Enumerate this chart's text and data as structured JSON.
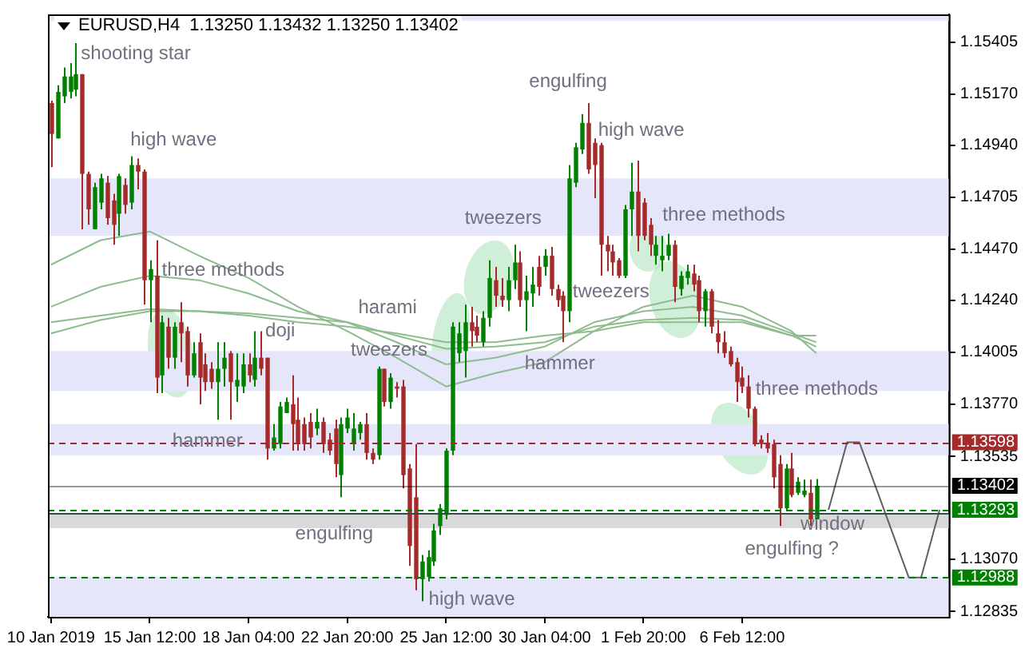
{
  "chart_data": {
    "type": "candlestick",
    "title": "EURUSD,H4  1.13250 1.13432 1.13250 1.13402",
    "categories": [
      "10 Jan 2019",
      null,
      null,
      null,
      null,
      null,
      null,
      null,
      null,
      null,
      null,
      null,
      null,
      null,
      null,
      null,
      "15 Jan 12:00",
      null,
      null,
      null,
      null,
      null,
      null,
      null,
      null,
      null,
      null,
      null,
      null,
      null,
      null,
      null,
      "18 Jan 04:00",
      null,
      null,
      null,
      null,
      null,
      null,
      null,
      null,
      null,
      null,
      null,
      null,
      null,
      null,
      null,
      "22 Jan 20:00",
      null,
      null,
      null,
      null,
      null,
      null,
      null,
      null,
      null,
      null,
      null,
      null,
      null,
      null,
      null,
      "25 Jan 12:00",
      null,
      null,
      null,
      null,
      null,
      null,
      null,
      null,
      null,
      null,
      null,
      null,
      null,
      null,
      null,
      "30 Jan 04:00",
      null,
      null,
      null,
      null,
      null,
      null,
      null,
      null,
      null,
      null,
      null,
      null,
      null,
      null,
      null,
      "1 Feb 20:00",
      null,
      null,
      null,
      null,
      null,
      null,
      null,
      null,
      null,
      null,
      null,
      null,
      null,
      null,
      null,
      "6 Feb 12:00",
      null,
      null,
      null,
      null,
      null,
      null,
      null,
      null,
      null,
      null,
      null,
      null,
      null,
      null,
      null,
      null,
      null,
      null,
      null,
      null,
      null,
      null,
      null,
      null,
      null,
      null,
      null,
      null,
      null,
      null,
      null,
      null,
      null
    ],
    "ohlc": [
      [
        1.1513,
        1.1514,
        1.1484,
        1.1499
      ],
      [
        1.1497,
        1.1521,
        1.1497,
        1.1518
      ],
      [
        1.1516,
        1.1529,
        1.1513,
        1.1525
      ],
      [
        1.1518,
        1.1531,
        1.1515,
        1.1525
      ],
      [
        1.1519,
        1.154,
        1.1516,
        1.1526
      ],
      [
        1.1526,
        1.1526,
        1.1456,
        1.1481
      ],
      [
        1.1481,
        1.1482,
        1.1458,
        1.1465
      ],
      [
        1.1456,
        1.1477,
        1.1456,
        1.1475
      ],
      [
        1.1468,
        1.1481,
        1.1465,
        1.1479
      ],
      [
        1.1477,
        1.148,
        1.1458,
        1.1461
      ],
      [
        1.1469,
        1.1472,
        1.1449,
        1.1458
      ],
      [
        1.1463,
        1.1481,
        1.1453,
        1.148
      ],
      [
        1.1476,
        1.1479,
        1.1463,
        1.1467
      ],
      [
        1.1468,
        1.1489,
        1.1465,
        1.1485
      ],
      [
        1.1485,
        1.1488,
        1.1474,
        1.1482
      ],
      [
        1.1482,
        1.1483,
        1.1422,
        1.1433
      ],
      [
        1.1433,
        1.1442,
        1.1414,
        1.1438
      ],
      [
        1.1435,
        1.1451,
        1.1382,
        1.1389
      ],
      [
        1.139,
        1.1417,
        1.1382,
        1.1414
      ],
      [
        1.1412,
        1.1416,
        1.1393,
        1.1398
      ],
      [
        1.1398,
        1.1414,
        1.1393,
        1.1412
      ],
      [
        1.1414,
        1.1423,
        1.1396,
        1.1409
      ],
      [
        1.141,
        1.1412,
        1.1385,
        1.139
      ],
      [
        1.139,
        1.1405,
        1.1389,
        1.14
      ],
      [
        1.1405,
        1.1409,
        1.1377,
        1.1389
      ],
      [
        1.1395,
        1.14,
        1.1383,
        1.1387
      ],
      [
        1.1393,
        1.1396,
        1.1384,
        1.1387
      ],
      [
        1.1387,
        1.1405,
        1.137,
        1.1393
      ],
      [
        1.1393,
        1.1405,
        1.1385,
        1.1398
      ],
      [
        1.14,
        1.1401,
        1.137,
        1.1387
      ],
      [
        1.1385,
        1.14,
        1.1378,
        1.1388
      ],
      [
        1.1385,
        1.14,
        1.1382,
        1.1395
      ],
      [
        1.1395,
        1.14,
        1.1387,
        1.139
      ],
      [
        1.1388,
        1.141,
        1.1385,
        1.1398
      ],
      [
        1.1398,
        1.141,
        1.139,
        1.1393
      ],
      [
        1.1398,
        1.1398,
        1.1352,
        1.1357
      ],
      [
        1.1357,
        1.1368,
        1.1356,
        1.1362
      ],
      [
        1.1359,
        1.1378,
        1.1357,
        1.1376
      ],
      [
        1.1373,
        1.138,
        1.1373,
        1.1378
      ],
      [
        1.1377,
        1.139,
        1.1356,
        1.1368
      ],
      [
        1.137,
        1.138,
        1.1356,
        1.1359
      ],
      [
        1.1368,
        1.1371,
        1.1356,
        1.1359
      ],
      [
        1.1369,
        1.1373,
        1.1357,
        1.1362
      ],
      [
        1.1366,
        1.1375,
        1.1363,
        1.1369
      ],
      [
        1.1369,
        1.1371,
        1.1355,
        1.1359
      ],
      [
        1.1361,
        1.1364,
        1.1354,
        1.1356
      ],
      [
        1.1366,
        1.137,
        1.1344,
        1.135
      ],
      [
        1.1345,
        1.1371,
        1.1335,
        1.1368
      ],
      [
        1.1366,
        1.1375,
        1.1364,
        1.1371
      ],
      [
        1.1359,
        1.1373,
        1.1356,
        1.1366
      ],
      [
        1.1364,
        1.1369,
        1.1361,
        1.1368
      ],
      [
        1.1368,
        1.1373,
        1.1352,
        1.1355
      ],
      [
        1.1355,
        1.1357,
        1.135,
        1.1352
      ],
      [
        1.1354,
        1.1394,
        1.1352,
        1.1393
      ],
      [
        1.1393,
        1.1393,
        1.1376,
        1.1378
      ],
      [
        1.1378,
        1.1391,
        1.1375,
        1.1389
      ],
      [
        1.1385,
        1.1387,
        1.138,
        1.1384
      ],
      [
        1.1385,
        1.1388,
        1.1339,
        1.1345
      ],
      [
        1.1348,
        1.135,
        1.1304,
        1.1313
      ],
      [
        1.1335,
        1.1359,
        1.1293,
        1.1298
      ],
      [
        1.1298,
        1.1309,
        1.1288,
        1.1306
      ],
      [
        1.1299,
        1.1311,
        1.1297,
        1.1308
      ],
      [
        1.1306,
        1.1323,
        1.1304,
        1.132
      ],
      [
        1.1322,
        1.1332,
        1.1318,
        1.133
      ],
      [
        1.1327,
        1.1357,
        1.1325,
        1.1356
      ],
      [
        1.1356,
        1.1414,
        1.1354,
        1.1412
      ],
      [
        1.14,
        1.1414,
        1.1396,
        1.1409
      ],
      [
        1.1401,
        1.1422,
        1.1389,
        1.1414
      ],
      [
        1.1414,
        1.1421,
        1.1403,
        1.141
      ],
      [
        1.1412,
        1.1417,
        1.1405,
        1.1408
      ],
      [
        1.1405,
        1.1419,
        1.1403,
        1.1416
      ],
      [
        1.1416,
        1.1442,
        1.1412,
        1.1434
      ],
      [
        1.1433,
        1.1439,
        1.1421,
        1.1426
      ],
      [
        1.1426,
        1.1434,
        1.1421,
        1.1424
      ],
      [
        1.1424,
        1.1439,
        1.1419,
        1.1433
      ],
      [
        1.1433,
        1.1449,
        1.1429,
        1.1441
      ],
      [
        1.1441,
        1.1446,
        1.1421,
        1.1424
      ],
      [
        1.1424,
        1.1435,
        1.141,
        1.1428
      ],
      [
        1.1427,
        1.1439,
        1.1421,
        1.1431
      ],
      [
        1.1439,
        1.1444,
        1.1426,
        1.143
      ],
      [
        1.1439,
        1.1447,
        1.1435,
        1.1444
      ],
      [
        1.1444,
        1.1448,
        1.1426,
        1.1429
      ],
      [
        1.1429,
        1.1431,
        1.1421,
        1.1424
      ],
      [
        1.1426,
        1.1428,
        1.1405,
        1.1419
      ],
      [
        1.1419,
        1.1485,
        1.1414,
        1.1479
      ],
      [
        1.1477,
        1.1495,
        1.1475,
        1.1493
      ],
      [
        1.1492,
        1.1508,
        1.149,
        1.1504
      ],
      [
        1.1504,
        1.1513,
        1.1481,
        1.1483
      ],
      [
        1.1495,
        1.1497,
        1.147,
        1.1485
      ],
      [
        1.1494,
        1.1495,
        1.1435,
        1.1449
      ],
      [
        1.1449,
        1.1453,
        1.1437,
        1.1446
      ],
      [
        1.1446,
        1.1449,
        1.1435,
        1.1441
      ],
      [
        1.1442,
        1.1443,
        1.1434,
        1.1435
      ],
      [
        1.1435,
        1.1467,
        1.1434,
        1.1465
      ],
      [
        1.1465,
        1.1486,
        1.1453,
        1.1473
      ],
      [
        1.1473,
        1.1487,
        1.1446,
        1.1453
      ],
      [
        1.1468,
        1.147,
        1.1451,
        1.1453
      ],
      [
        1.1458,
        1.1461,
        1.1444,
        1.1449
      ],
      [
        1.1444,
        1.1453,
        1.144,
        1.1449
      ],
      [
        1.1442,
        1.1453,
        1.1437,
        1.1444
      ],
      [
        1.1444,
        1.1454,
        1.1442,
        1.1449
      ],
      [
        1.1449,
        1.1451,
        1.1423,
        1.143
      ],
      [
        1.1429,
        1.1437,
        1.1426,
        1.1435
      ],
      [
        1.1434,
        1.144,
        1.1431,
        1.1437
      ],
      [
        1.1436,
        1.144,
        1.1428,
        1.1431
      ],
      [
        1.1433,
        1.1435,
        1.1414,
        1.1419
      ],
      [
        1.1419,
        1.1429,
        1.1412,
        1.1428
      ],
      [
        1.1428,
        1.1429,
        1.1409,
        1.1412
      ],
      [
        1.1409,
        1.1415,
        1.14,
        1.1405
      ],
      [
        1.1405,
        1.141,
        1.1398,
        1.14
      ],
      [
        1.1401,
        1.1403,
        1.1394,
        1.1395
      ],
      [
        1.1396,
        1.1398,
        1.1378,
        1.1387
      ],
      [
        1.1389,
        1.1394,
        1.1382,
        1.1385
      ],
      [
        1.1385,
        1.139,
        1.1371,
        1.1375
      ],
      [
        1.1375,
        1.1376,
        1.1358,
        1.1359
      ],
      [
        1.1361,
        1.1363,
        1.1357,
        1.1359
      ],
      [
        1.1359,
        1.1364,
        1.1355,
        1.1357
      ],
      [
        1.1359,
        1.1361,
        1.1339,
        1.1344
      ],
      [
        1.135,
        1.1354,
        1.1322,
        1.133
      ],
      [
        1.133,
        1.135,
        1.1329,
        1.1348
      ],
      [
        1.1348,
        1.1355,
        1.1335,
        1.1336
      ],
      [
        1.1337,
        1.1344,
        1.1336,
        1.1342
      ],
      [
        1.1336,
        1.1343,
        1.1335,
        1.1338
      ],
      [
        1.1337,
        1.1343,
        1.1322,
        1.1325
      ],
      [
        1.1325,
        1.13432,
        1.1325,
        1.13402
      ],
      null,
      null,
      null,
      null,
      null,
      null,
      null,
      null,
      null,
      null,
      null,
      null,
      null,
      null,
      null,
      null,
      null,
      null,
      null,
      null,
      null
    ],
    "colors": [
      "#a52a2a",
      "#008000",
      "#008000",
      "#008000",
      "#008000",
      "#a52a2a",
      "#a52a2a",
      "#008000",
      "#008000",
      "#a52a2a",
      "#a52a2a",
      "#008000",
      "#a52a2a",
      "#008000",
      "#a52a2a",
      "#a52a2a",
      "#008000",
      "#a52a2a",
      "#008000",
      "#a52a2a",
      "#008000",
      "#a52a2a",
      "#a52a2a",
      "#008000",
      "#a52a2a",
      "#a52a2a",
      "#a52a2a",
      "#008000",
      "#008000",
      "#a52a2a",
      "#008000",
      "#008000",
      "#a52a2a",
      "#008000",
      "#a52a2a",
      "#a52a2a",
      "#008000",
      "#008000",
      "#008000",
      "#a52a2a",
      "#a52a2a",
      "#a52a2a",
      "#a52a2a",
      "#008000",
      "#a52a2a",
      "#a52a2a",
      "#a52a2a",
      "#008000",
      "#008000",
      "#008000",
      "#008000",
      "#a52a2a",
      "#a52a2a",
      "#008000",
      "#a52a2a",
      "#008000",
      "#a52a2a",
      "#a52a2a",
      "#a52a2a",
      "#a52a2a",
      "#008000",
      "#008000",
      "#008000",
      "#008000",
      "#008000",
      "#008000",
      "#008000",
      "#008000",
      "#a52a2a",
      "#a52a2a",
      "#008000",
      "#008000",
      "#a52a2a",
      "#a52a2a",
      "#008000",
      "#008000",
      "#a52a2a",
      "#008000",
      "#008000",
      "#a52a2a",
      "#008000",
      "#a52a2a",
      "#a52a2a",
      "#a52a2a",
      "#008000",
      "#008000",
      "#008000",
      "#a52a2a",
      "#a52a2a",
      "#a52a2a",
      "#a52a2a",
      "#a52a2a",
      "#a52a2a",
      "#008000",
      "#008000",
      "#a52a2a",
      "#a52a2a",
      "#a52a2a",
      "#008000",
      "#008000",
      "#008000",
      "#a52a2a",
      "#008000",
      "#008000",
      "#a52a2a",
      "#a52a2a",
      "#008000",
      "#a52a2a",
      "#a52a2a",
      "#a52a2a",
      "#a52a2a",
      "#a52a2a",
      "#a52a2a",
      "#a52a2a",
      "#a52a2a",
      "#a52a2a",
      "#a52a2a",
      "#a52a2a",
      "#a52a2a",
      "#008000",
      "#a52a2a",
      "#008000",
      "#008000",
      "#a52a2a",
      "#008000",
      null,
      null,
      null,
      null,
      null,
      null,
      null,
      null,
      null,
      null,
      null,
      null,
      null,
      null,
      null,
      null,
      null,
      null,
      null,
      null,
      null
    ],
    "series": [
      {
        "type": "line",
        "color": "#8fbc8f",
        "line_style": "solid",
        "values": [
          1.144,
          null,
          null,
          null,
          null,
          null,
          null,
          null,
          1.1451,
          null,
          null,
          null,
          null,
          null,
          null,
          null,
          1.1455,
          null,
          null,
          null,
          null,
          null,
          null,
          null,
          1.1444,
          null,
          null,
          null,
          null,
          null,
          null,
          null,
          1.1434,
          null,
          null,
          null,
          null,
          null,
          null,
          null,
          1.1421,
          null,
          null,
          null,
          null,
          null,
          null,
          null,
          1.141,
          null,
          null,
          null,
          null,
          null,
          null,
          null,
          1.1398,
          null,
          null,
          null,
          null,
          null,
          null,
          null,
          1.1385,
          null,
          null,
          null,
          null,
          null,
          null,
          null,
          1.1391,
          null,
          null,
          null,
          null,
          null,
          null,
          null,
          1.1396,
          null,
          null,
          null,
          null,
          null,
          null,
          null,
          1.141,
          null,
          null,
          null,
          null,
          null,
          null,
          null,
          1.1421,
          null,
          null,
          null,
          null,
          null,
          null,
          null,
          1.1426,
          null,
          null,
          null,
          null,
          null,
          null,
          null,
          1.1421,
          null,
          null,
          null,
          null,
          null,
          null,
          null,
          1.141,
          null,
          null,
          null,
          1.14,
          null,
          null,
          null,
          null,
          null,
          null,
          null,
          null,
          null,
          null,
          null,
          null,
          null,
          null,
          null,
          null,
          null,
          null,
          null,
          null,
          null
        ]
      },
      {
        "type": "line",
        "color": "#8fbc8f",
        "line_style": "solid",
        "values": [
          1.1421,
          null,
          null,
          null,
          null,
          null,
          null,
          null,
          1.143,
          null,
          null,
          null,
          null,
          null,
          null,
          null,
          1.1435,
          null,
          null,
          null,
          null,
          null,
          null,
          null,
          1.1433,
          null,
          null,
          null,
          null,
          null,
          null,
          null,
          1.1427,
          null,
          null,
          null,
          null,
          null,
          null,
          null,
          1.1419,
          null,
          null,
          null,
          null,
          null,
          null,
          null,
          1.1414,
          null,
          null,
          null,
          null,
          null,
          null,
          null,
          1.1405,
          null,
          null,
          null,
          null,
          null,
          null,
          null,
          1.1395,
          null,
          null,
          null,
          null,
          null,
          null,
          null,
          1.1398,
          null,
          null,
          null,
          null,
          null,
          null,
          null,
          1.1403,
          null,
          null,
          null,
          null,
          null,
          null,
          null,
          1.1414,
          null,
          null,
          null,
          null,
          null,
          null,
          null,
          1.1419,
          null,
          null,
          null,
          null,
          null,
          null,
          null,
          1.1421,
          null,
          null,
          null,
          null,
          null,
          null,
          null,
          1.1417,
          null,
          null,
          null,
          null,
          null,
          null,
          null,
          1.1409,
          null,
          null,
          null,
          1.1405,
          null,
          null,
          null,
          null,
          null,
          null,
          null,
          null,
          null,
          null,
          null,
          null,
          null,
          null,
          null,
          null,
          null,
          null,
          null,
          null,
          null
        ]
      },
      {
        "type": "line",
        "color": "#8fbc8f",
        "line_style": "solid",
        "values": [
          1.1414,
          null,
          null,
          null,
          null,
          null,
          null,
          null,
          1.1417,
          null,
          null,
          null,
          null,
          null,
          null,
          null,
          1.142,
          null,
          null,
          null,
          null,
          null,
          null,
          null,
          1.1419,
          null,
          null,
          null,
          null,
          null,
          null,
          null,
          1.1418,
          null,
          null,
          null,
          null,
          null,
          null,
          null,
          1.1416,
          null,
          null,
          null,
          null,
          null,
          null,
          null,
          1.1414,
          null,
          null,
          null,
          null,
          null,
          null,
          null,
          1.1408,
          null,
          null,
          null,
          null,
          null,
          null,
          null,
          1.1402,
          null,
          null,
          null,
          null,
          null,
          null,
          null,
          1.1403,
          null,
          null,
          null,
          null,
          null,
          null,
          null,
          1.1405,
          null,
          null,
          null,
          null,
          null,
          null,
          null,
          1.1412,
          null,
          null,
          null,
          null,
          null,
          null,
          null,
          1.1415,
          null,
          null,
          null,
          null,
          null,
          null,
          null,
          1.1416,
          null,
          null,
          null,
          null,
          null,
          null,
          null,
          1.1415,
          null,
          null,
          null,
          null,
          null,
          null,
          null,
          1.1408,
          null,
          null,
          null,
          1.1403,
          null,
          null,
          null,
          null,
          null,
          null,
          null,
          null,
          null,
          null,
          null,
          null,
          null,
          null,
          null,
          null,
          null,
          null,
          null,
          null,
          null
        ]
      },
      {
        "type": "line",
        "color": "#8fbc8f",
        "line_style": "solid",
        "values": [
          1.1409,
          null,
          null,
          null,
          null,
          null,
          null,
          null,
          1.1415,
          null,
          null,
          null,
          null,
          null,
          null,
          null,
          1.1419,
          null,
          null,
          null,
          null,
          null,
          null,
          null,
          1.1419,
          null,
          null,
          null,
          null,
          null,
          null,
          null,
          1.1417,
          null,
          null,
          null,
          null,
          null,
          null,
          null,
          1.1414,
          null,
          null,
          null,
          null,
          null,
          null,
          null,
          1.1412,
          null,
          null,
          null,
          null,
          null,
          null,
          null,
          1.1409,
          null,
          null,
          null,
          null,
          null,
          null,
          null,
          1.1405,
          null,
          null,
          null,
          null,
          null,
          null,
          null,
          1.1405,
          null,
          null,
          null,
          null,
          null,
          null,
          null,
          1.1408,
          null,
          null,
          null,
          null,
          null,
          null,
          null,
          1.141,
          null,
          null,
          null,
          null,
          null,
          null,
          null,
          1.1414,
          null,
          null,
          null,
          null,
          null,
          null,
          null,
          1.1414,
          null,
          null,
          null,
          null,
          null,
          null,
          null,
          1.1414,
          null,
          null,
          null,
          null,
          null,
          null,
          null,
          1.1408,
          null,
          null,
          null,
          1.1408,
          null,
          null,
          null,
          null,
          null,
          null,
          null,
          null,
          null,
          null,
          null,
          null,
          null,
          null,
          null,
          null,
          null,
          null,
          null,
          null,
          null
        ]
      },
      {
        "type": "line",
        "color": "#606060",
        "line_style": "solid",
        "values": [
          null,
          null,
          null,
          null,
          null,
          null,
          null,
          null,
          null,
          null,
          null,
          null,
          null,
          null,
          null,
          null,
          null,
          null,
          null,
          null,
          null,
          null,
          null,
          null,
          null,
          null,
          null,
          null,
          null,
          null,
          null,
          null,
          null,
          null,
          null,
          null,
          null,
          null,
          null,
          null,
          null,
          null,
          null,
          null,
          null,
          null,
          null,
          null,
          null,
          null,
          null,
          null,
          null,
          null,
          null,
          null,
          null,
          null,
          null,
          null,
          null,
          null,
          null,
          null,
          null,
          null,
          null,
          null,
          null,
          null,
          null,
          null,
          null,
          null,
          null,
          null,
          null,
          null,
          null,
          null,
          null,
          null,
          null,
          null,
          null,
          null,
          null,
          null,
          null,
          null,
          null,
          null,
          null,
          null,
          null,
          null,
          null,
          null,
          null,
          null,
          null,
          null,
          null,
          null,
          null,
          null,
          null,
          null,
          null,
          null,
          null,
          null,
          null,
          null,
          null,
          null,
          null,
          null,
          null,
          null,
          null,
          null,
          null,
          null,
          null,
          null,
          1.13293,
          null,
          null,
          1.13598,
          null,
          1.13598,
          null,
          null,
          null,
          null,
          null,
          null,
          null,
          1.12988,
          null,
          1.12988,
          null,
          null,
          1.13293,
          null
        ]
      }
    ],
    "ylim": [
      1.1281,
      1.1553
    ],
    "yticks": [
      {
        "value": 1.15405,
        "label": "1.15405"
      },
      {
        "value": 1.1517,
        "label": "1.15170"
      },
      {
        "value": 1.1494,
        "label": "1.14940"
      },
      {
        "value": 1.14705,
        "label": "1.14705"
      },
      {
        "value": 1.1447,
        "label": "1.14470"
      },
      {
        "value": 1.1424,
        "label": "1.14240"
      },
      {
        "value": 1.14005,
        "label": "1.14005"
      },
      {
        "value": 1.1377,
        "label": "1.13770"
      },
      {
        "value": 1.13535,
        "label": "1.13535"
      },
      {
        "value": 1.1307,
        "label": "1.13070"
      },
      {
        "value": 1.12835,
        "label": "1.12835"
      }
    ],
    "ref_lines": [
      {
        "axis": "y",
        "value": 1.13598,
        "label": "1.13598",
        "color": "#a52a2a",
        "line_style": "dashed"
      },
      {
        "axis": "y",
        "value": 1.13402,
        "label": "1.13402",
        "color": "#000000",
        "line_style": "solid"
      },
      {
        "axis": "y",
        "value": 1.13293,
        "label": "1.13293",
        "color": "#008000",
        "line_style": "dashed"
      },
      {
        "axis": "y",
        "value": 1.12988,
        "label": "1.12988",
        "color": "#008000",
        "line_style": "dashed"
      },
      {
        "axis": "y",
        "value": 1.1328,
        "color": "#2f4f4f",
        "line_style": "solid"
      }
    ],
    "bands": [
      {
        "axis": "y",
        "from": 1.155,
        "to": 1.1553,
        "color": "#e6e6fa"
      },
      {
        "axis": "y",
        "from": 1.1453,
        "to": 1.1479,
        "color": "#e6e6fa"
      },
      {
        "axis": "y",
        "from": 1.1383,
        "to": 1.1401,
        "color": "#e6e6fa"
      },
      {
        "axis": "y",
        "from": 1.1354,
        "to": 1.1368,
        "color": "#e6e6fa"
      },
      {
        "axis": "y",
        "from": 1.1281,
        "to": 1.1299,
        "color": "#e6e6fa"
      },
      {
        "axis": "y",
        "from": 1.1321,
        "to": 1.1328,
        "color": "#d9d9d9"
      }
    ],
    "annotations": [
      "shooting star",
      "high wave",
      "three methods",
      "doji",
      "hammer",
      "harami",
      "tweezers",
      "engulfing",
      "high wave",
      "tweezers",
      "hammer",
      "engulfing",
      "high wave",
      "three methods",
      "tweezers",
      "three methods",
      "window",
      "engulfing ?"
    ],
    "grid": false,
    "legend": false
  }
}
